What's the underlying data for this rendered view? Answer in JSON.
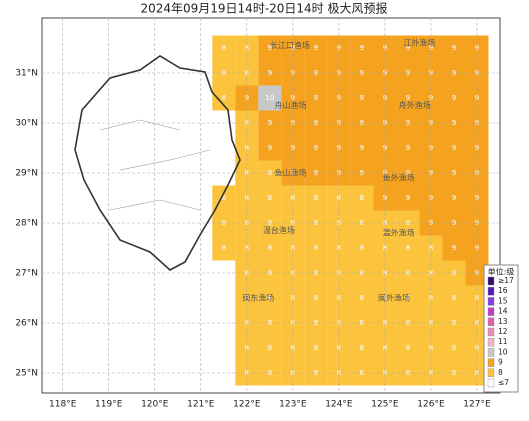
{
  "title": "2024年09月19日14时-20日14时 极大风预报",
  "map": {
    "lonlim": [
      117.55,
      127.5
    ],
    "latlim": [
      24.6,
      32.1
    ],
    "lon_ticks": [
      {
        "value": 118,
        "label": "118°E"
      },
      {
        "value": 119,
        "label": "119°E"
      },
      {
        "value": 120,
        "label": "120°E"
      },
      {
        "value": 121,
        "label": "121°E"
      },
      {
        "value": 122,
        "label": "122°E"
      },
      {
        "value": 123,
        "label": "123°E"
      },
      {
        "value": 124,
        "label": "124°E"
      },
      {
        "value": 125,
        "label": "125°E"
      },
      {
        "value": 126,
        "label": "126°E"
      },
      {
        "value": 127,
        "label": "127°E"
      }
    ],
    "lat_ticks": [
      {
        "value": 25,
        "label": "25°N"
      },
      {
        "value": 26,
        "label": "26°N"
      },
      {
        "value": 27,
        "label": "27°N"
      },
      {
        "value": 28,
        "label": "28°N"
      },
      {
        "value": 29,
        "label": "29°N"
      },
      {
        "value": 30,
        "label": "30°N"
      },
      {
        "value": 31,
        "label": "31°N"
      }
    ],
    "grid_lons": [
      121.5,
      122,
      122.5,
      123,
      123.5,
      124,
      124.5,
      125,
      125.5,
      126,
      126.5,
      127
    ],
    "grid_lats": [
      31.5,
      31,
      30.5,
      30,
      29.5,
      29,
      28.5,
      28,
      27.5,
      27,
      26.5,
      26,
      25.5,
      25
    ],
    "wind_levels": [
      [
        8,
        8,
        9,
        9,
        9,
        9,
        9,
        9,
        9,
        9,
        9,
        9
      ],
      [
        8,
        8,
        9,
        9,
        9,
        9,
        9,
        9,
        9,
        9,
        9,
        9
      ],
      [
        8,
        9,
        10,
        9,
        9,
        9,
        9,
        9,
        9,
        9,
        9,
        9
      ],
      [
        null,
        8,
        9,
        9,
        9,
        9,
        9,
        9,
        9,
        9,
        9,
        9
      ],
      [
        null,
        8,
        9,
        9,
        9,
        9,
        9,
        9,
        9,
        9,
        9,
        9
      ],
      [
        null,
        8,
        8,
        9,
        9,
        9,
        9,
        9,
        9,
        9,
        9,
        9
      ],
      [
        8,
        8,
        8,
        8,
        8,
        8,
        8,
        9,
        9,
        9,
        9,
        9
      ],
      [
        8,
        8,
        8,
        8,
        8,
        8,
        8,
        8,
        8,
        9,
        9,
        9
      ],
      [
        8,
        8,
        8,
        8,
        8,
        8,
        8,
        8,
        8,
        8,
        9,
        9
      ],
      [
        null,
        8,
        8,
        8,
        8,
        8,
        8,
        8,
        8,
        8,
        8,
        9
      ],
      [
        null,
        8,
        8,
        8,
        8,
        8,
        8,
        8,
        8,
        8,
        8,
        8
      ],
      [
        null,
        8,
        8,
        8,
        8,
        8,
        8,
        8,
        8,
        8,
        8,
        8
      ],
      [
        null,
        8,
        8,
        8,
        8,
        8,
        8,
        8,
        8,
        8,
        8,
        8
      ],
      [
        null,
        8,
        8,
        8,
        8,
        8,
        8,
        8,
        8,
        8,
        8,
        8
      ]
    ],
    "areas": [
      {
        "name": "长江口渔场",
        "lon": 122.5,
        "lat": 31.55
      },
      {
        "name": "江外渔场",
        "lon": 125.4,
        "lat": 31.6
      },
      {
        "name": "舟山渔场",
        "lon": 122.6,
        "lat": 30.35
      },
      {
        "name": "舟外渔场",
        "lon": 125.3,
        "lat": 30.35
      },
      {
        "name": "鱼山渔场",
        "lon": 122.6,
        "lat": 29.0
      },
      {
        "name": "鱼外渔场",
        "lon": 124.95,
        "lat": 28.9
      },
      {
        "name": "温台渔场",
        "lon": 122.35,
        "lat": 27.85
      },
      {
        "name": "温外渔场",
        "lon": 124.95,
        "lat": 27.8
      },
      {
        "name": "闽东渔场",
        "lon": 121.9,
        "lat": 26.5
      },
      {
        "name": "闽外渔场",
        "lon": 124.85,
        "lat": 26.5
      }
    ]
  },
  "legend": {
    "title": "单位:级",
    "items": [
      {
        "label": "≥17",
        "color": "#3b0a6e"
      },
      {
        "label": "16",
        "color": "#5a1ab8"
      },
      {
        "label": "15",
        "color": "#8a3ce0"
      },
      {
        "label": "14",
        "color": "#c03cc8"
      },
      {
        "label": "13",
        "color": "#e060a8"
      },
      {
        "label": "12",
        "color": "#f08ab0"
      },
      {
        "label": "11",
        "color": "#f4b4c0"
      },
      {
        "label": "10",
        "color": "#c8c8c8"
      },
      {
        "label": "9",
        "color": "#f5a21e"
      },
      {
        "label": "8",
        "color": "#fbc43c"
      },
      {
        "label": "≤7",
        "color": "#ffffff"
      }
    ]
  }
}
